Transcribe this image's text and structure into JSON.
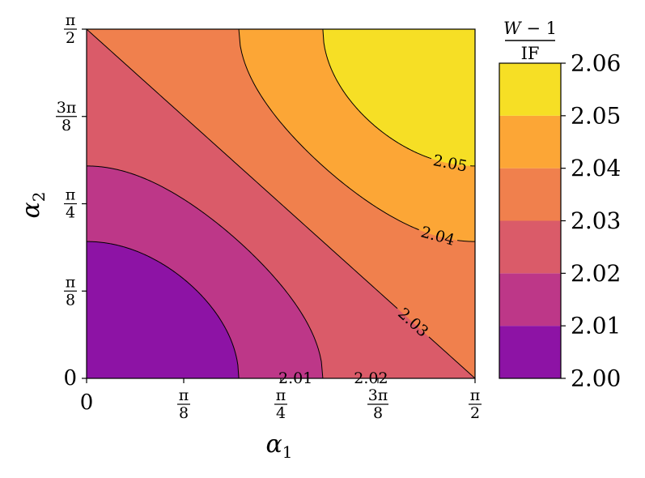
{
  "chart_data": {
    "type": "contour",
    "function": "f(a1,a2) = 2 + 0.06 * ((sin a1)^2 + (sin a2)^2) / 2",
    "x": {
      "label": "α",
      "label_sub": "1",
      "range": [
        0,
        1.5708
      ],
      "tick_values": [
        0,
        0.3927,
        0.7854,
        1.1781,
        1.5708
      ],
      "tick_labels": [
        {
          "simple": "0"
        },
        {
          "num": "π",
          "den": "8"
        },
        {
          "num": "π",
          "den": "4"
        },
        {
          "num": "3π",
          "den": "8"
        },
        {
          "num": "π",
          "den": "2"
        }
      ]
    },
    "y": {
      "label": "α",
      "label_sub": "2",
      "range": [
        0,
        1.5708
      ],
      "tick_values": [
        0,
        0.3927,
        0.7854,
        1.1781,
        1.5708
      ],
      "tick_labels": [
        {
          "simple": "0"
        },
        {
          "num": "π",
          "den": "8"
        },
        {
          "num": "π",
          "den": "4"
        },
        {
          "num": "3π",
          "den": "8"
        },
        {
          "num": "π",
          "den": "2"
        }
      ]
    },
    "levels": [
      2.0,
      2.01,
      2.02,
      2.03,
      2.04,
      2.05,
      2.06
    ],
    "contour_lines": [
      {
        "level": 2.01,
        "label": "2.01"
      },
      {
        "level": 2.02,
        "label": "2.02"
      },
      {
        "level": 2.03,
        "label": "2.03"
      },
      {
        "level": 2.04,
        "label": "2.04"
      },
      {
        "level": 2.05,
        "label": "2.05"
      }
    ],
    "band_colors": [
      "#8d13a5",
      "#bd3788",
      "#da5b69",
      "#f0804d",
      "#fca636",
      "#f6df25"
    ],
    "colorbar": {
      "title_num_italic": "W",
      "title_num_rest": " − 1",
      "title_den": "IF",
      "tick_labels": [
        "2.00",
        "2.01",
        "2.02",
        "2.03",
        "2.04",
        "2.05",
        "2.06"
      ]
    },
    "colormap": "plasma",
    "grid": false
  }
}
